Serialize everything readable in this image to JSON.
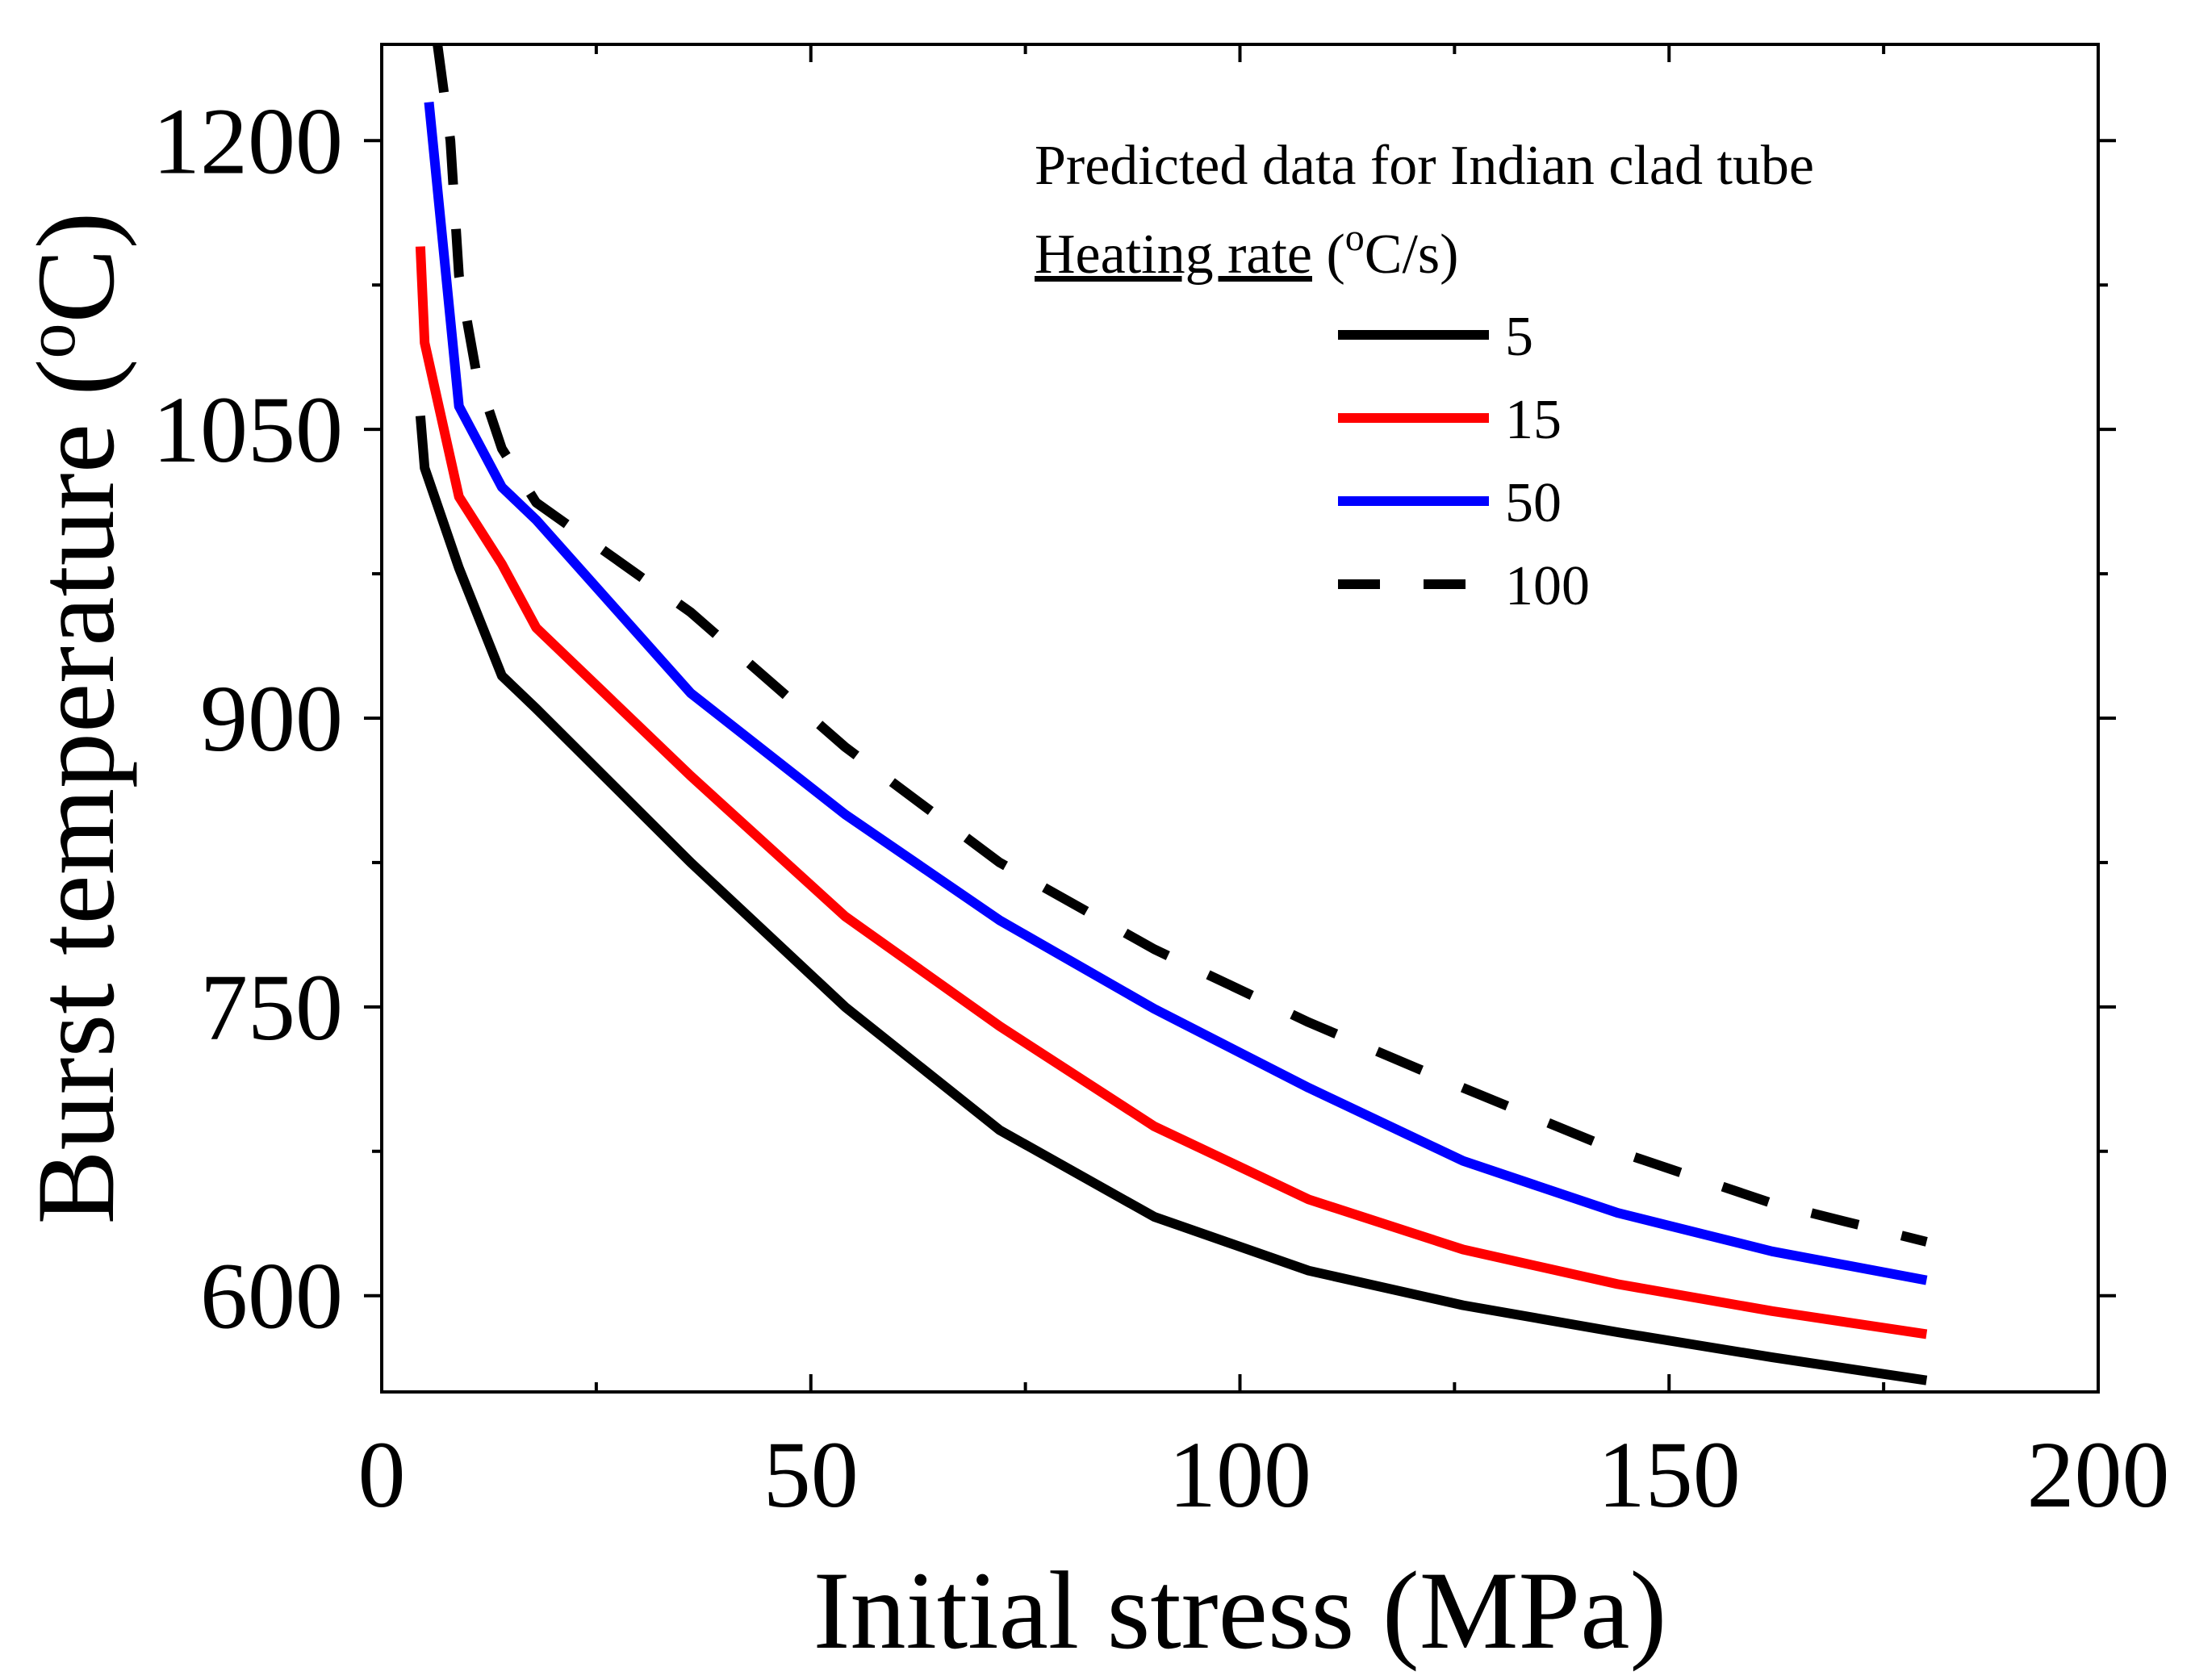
{
  "chart_data": {
    "type": "line",
    "xlabel": "Initial stress (MPa)",
    "ylabel_main": "Burst temperature (",
    "ylabel_sup": "o",
    "ylabel_end": "C)",
    "xlim": [
      0,
      200
    ],
    "ylim": [
      550,
      1250
    ],
    "xticks": [
      0,
      50,
      100,
      150,
      200
    ],
    "yticks": [
      600,
      750,
      900,
      1050,
      1200
    ],
    "grid": false,
    "legend_position": "top-right",
    "legend_title": "Predicted data for Indian clad tube",
    "legend_subtitle_underlined": "Heating rate",
    "legend_subtitle_open": " (",
    "legend_subtitle_sup": "o",
    "legend_subtitle_close": "C/s)",
    "series": [
      {
        "name": "5",
        "color": "#000000",
        "dash": "solid",
        "x": [
          4.5,
          5,
          9,
          14,
          18,
          36,
          54,
          72,
          90,
          108,
          126,
          144,
          162,
          180
        ],
        "y": [
          1057,
          1030,
          978,
          922,
          905,
          825,
          750,
          686,
          641,
          613,
          595,
          581,
          568,
          556
        ]
      },
      {
        "name": "15",
        "color": "#ff0000",
        "dash": "solid",
        "x": [
          4.5,
          5,
          9,
          14,
          18,
          36,
          54,
          72,
          90,
          108,
          126,
          144,
          162,
          180
        ],
        "y": [
          1145,
          1095,
          1015,
          980,
          947,
          870,
          797,
          740,
          688,
          650,
          624,
          606,
          592,
          580
        ]
      },
      {
        "name": "50",
        "color": "#0000ff",
        "dash": "solid",
        "x": [
          5.5,
          9,
          14,
          18,
          36,
          54,
          72,
          90,
          108,
          126,
          144,
          162,
          180
        ],
        "y": [
          1220,
          1062,
          1020,
          1003,
          913,
          850,
          795,
          749,
          708,
          670,
          643,
          623,
          608
        ]
      },
      {
        "name": "100",
        "color": "#000000",
        "dash": "dashed",
        "x": [
          6.5,
          8,
          9,
          11,
          14,
          18,
          36,
          54,
          72,
          90,
          108,
          126,
          144,
          162,
          180
        ],
        "y": [
          1250,
          1200,
          1130,
          1080,
          1040,
          1012,
          955,
          885,
          825,
          780,
          742,
          708,
          675,
          648,
          628
        ]
      }
    ]
  }
}
